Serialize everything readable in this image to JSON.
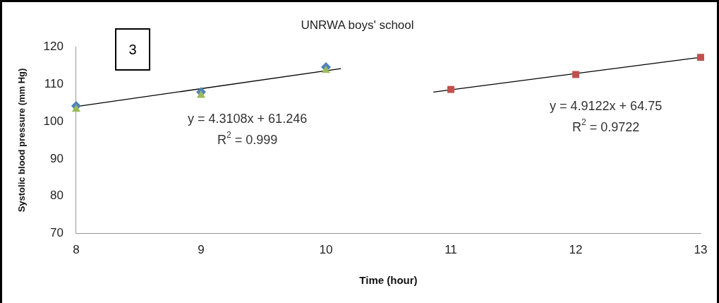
{
  "chart_data": {
    "type": "scatter",
    "title": "UNRWA boys' school",
    "xlabel": "Time (hour)",
    "ylabel": "Systolic blood pressure (mm Hg)",
    "xlim": [
      8,
      13
    ],
    "xticks": [
      8,
      9,
      10,
      11,
      12,
      13
    ],
    "ylim": [
      70,
      120
    ],
    "yticks": [
      70,
      80,
      90,
      100,
      110,
      120
    ],
    "grid": false,
    "legend": false,
    "series": [
      {
        "color": "#9bbb59",
        "marker": "triangle",
        "x": [
          8,
          9,
          10
        ],
        "values": [
          103.3,
          107,
          113.7
        ]
      },
      {
        "color": "#4f81bd",
        "marker": "diamond",
        "x": [
          8,
          9,
          10
        ],
        "values": [
          104.2,
          107.9,
          114.6
        ]
      },
      {
        "color": "#c0504d",
        "marker": "square",
        "x": [
          11,
          12,
          13
        ],
        "values": [
          108.6,
          112.6,
          117.2
        ]
      },
      {
        "type": "line",
        "color": "#000000",
        "marker": "none",
        "x": [
          8,
          10.12
        ],
        "values": [
          104,
          114.2
        ]
      },
      {
        "type": "line",
        "color": "#000000",
        "marker": "none",
        "x": [
          10.86,
          13
        ],
        "values": [
          107.9,
          117.2
        ]
      }
    ],
    "annotations": [
      "3",
      "y = 4.3108x + 61.246",
      "R$^{2}$ = 0.999",
      "y = 4.9122x + 64.75",
      "R$^{2}$ = 0.9722"
    ]
  }
}
